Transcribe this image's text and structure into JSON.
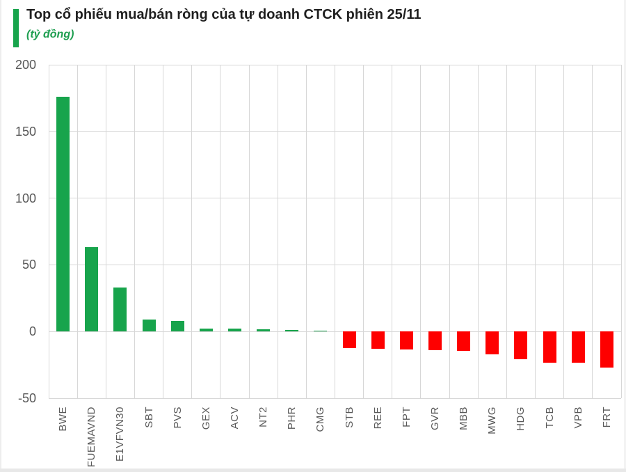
{
  "header": {
    "title": "Top cổ phiếu mua/bán ròng của tự doanh CTCK phiên 25/11",
    "subtitle": "(tỷ đồng)"
  },
  "colors": {
    "accent": "#17a44c",
    "positive": "#17a44c",
    "negative": "#fe0000",
    "grid": "#d7d7d7",
    "axis_text": "#595959",
    "title_text": "#1f1f1f",
    "subtitle_text": "#1e9e50"
  },
  "chart_data": {
    "type": "bar",
    "title": "Top cổ phiếu mua/bán ròng của tự doanh CTCK phiên 25/11",
    "subtitle": "(tỷ đồng)",
    "ylabel": "tỷ đồng",
    "categories": [
      "BWE",
      "FUEMAVND",
      "E1VFVN30",
      "SBT",
      "PVS",
      "GEX",
      "ACV",
      "NT2",
      "PHR",
      "CMG",
      "STB",
      "REE",
      "FPT",
      "GVR",
      "MBB",
      "MWG",
      "HDG",
      "TCB",
      "VPB",
      "FRT"
    ],
    "values": [
      176,
      63,
      33,
      9,
      8,
      2.2,
      2.2,
      1.8,
      1.3,
      0.4,
      -12.5,
      -13,
      -13.5,
      -14,
      -14.7,
      -17,
      -21,
      -23.3,
      -23.6,
      -27
    ],
    "ylim": [
      -50,
      200
    ],
    "yticks": [
      200,
      150,
      100,
      50,
      0,
      -50
    ],
    "grid": true,
    "legend": "none",
    "positive_color": "#17a44c",
    "negative_color": "#fe0000"
  }
}
